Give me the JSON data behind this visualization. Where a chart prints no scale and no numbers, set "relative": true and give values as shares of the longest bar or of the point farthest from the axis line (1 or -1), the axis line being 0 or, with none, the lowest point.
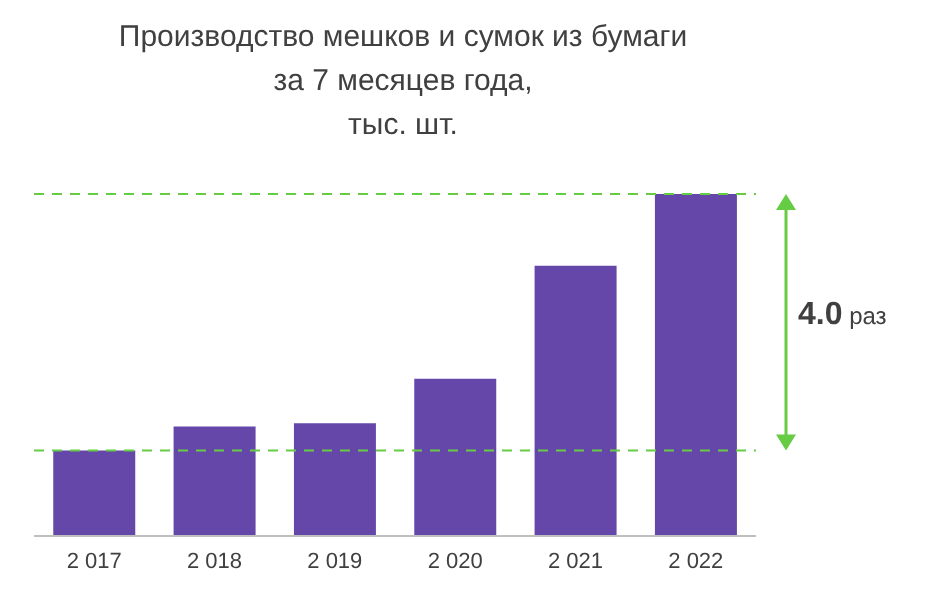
{
  "chart_data": {
    "type": "bar",
    "title": "Производство мешков и сумок из бумаги\nза 7 месяцев года,\nтыс. шт.",
    "categories": [
      "2 017",
      "2 018",
      "2 019",
      "2 020",
      "2 021",
      "2 022"
    ],
    "values": [
      0.25,
      0.32,
      0.33,
      0.46,
      0.79,
      1
    ],
    "color": "#6447a8",
    "relative": true,
    "grid": false,
    "legend": false,
    "ref_lines": [
      {
        "axis": "y",
        "value": 0.25,
        "color": "#66cc44",
        "line_style": "dashed"
      },
      {
        "axis": "y",
        "value": 1,
        "color": "#66cc44",
        "line_style": "dashed"
      }
    ],
    "annotations": [
      "4.0 раз"
    ]
  }
}
